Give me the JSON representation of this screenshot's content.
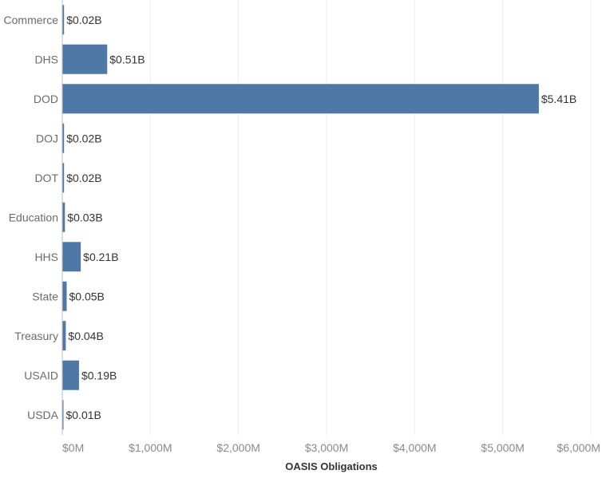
{
  "chart_data": {
    "type": "bar",
    "orientation": "horizontal",
    "categories": [
      "Commerce",
      "DHS",
      "DOD",
      "DOJ",
      "DOT",
      "Education",
      "HHS",
      "State",
      "Treasury",
      "USAID",
      "USDA"
    ],
    "values": [
      20,
      510,
      5410,
      20,
      20,
      30,
      210,
      50,
      40,
      190,
      10
    ],
    "data_labels": [
      "$0.02B",
      "$0.51B",
      "$5.41B",
      "$0.02B",
      "$0.02B",
      "$0.03B",
      "$0.21B",
      "$0.05B",
      "$0.04B",
      "$0.19B",
      "$0.01B"
    ],
    "title": "",
    "xlabel": "OASIS Obligations",
    "ylabel": "",
    "xlim": [
      0,
      6000
    ],
    "x_ticks": [
      0,
      1000,
      2000,
      3000,
      4000,
      5000,
      6000
    ],
    "x_tick_labels": [
      "$0M",
      "$1,000M",
      "$2,000M",
      "$3,000M",
      "$4,000M",
      "$5,000M",
      "$6,000M"
    ],
    "grid": true,
    "bar_color": "#4e79a7",
    "grid_color": "#eeeeee"
  }
}
